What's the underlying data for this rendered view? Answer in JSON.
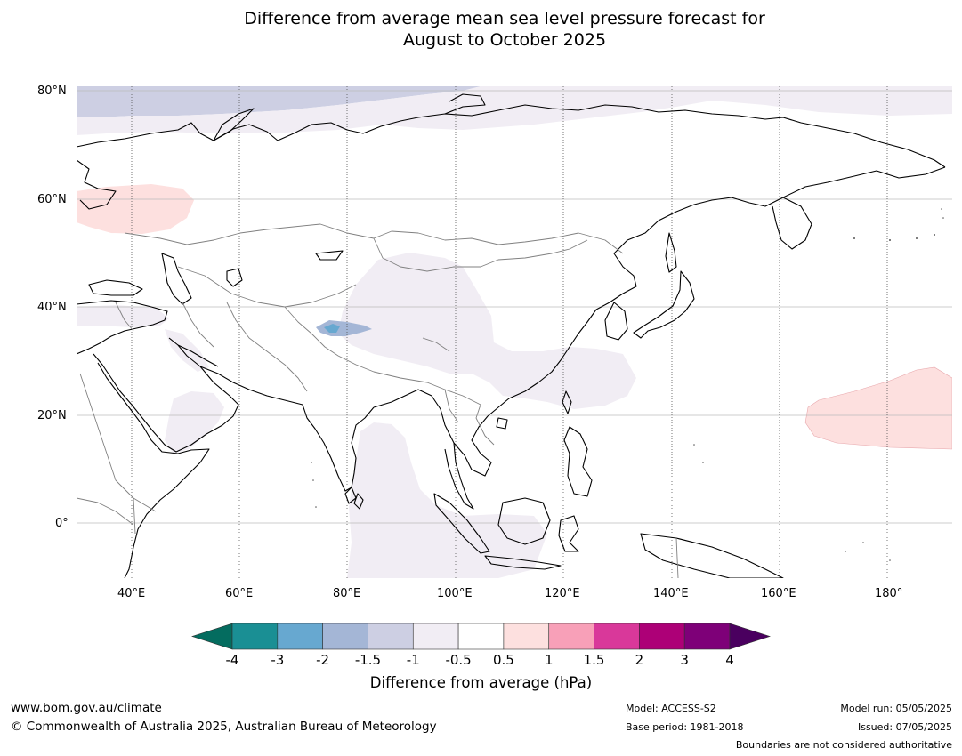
{
  "title": {
    "line1": "Difference from average mean sea level pressure forecast for",
    "line2": "August to October 2025"
  },
  "map": {
    "lat_labels": [
      "80°N",
      "60°N",
      "40°N",
      "20°N",
      "0°"
    ],
    "lon_labels": [
      "40°E",
      "60°E",
      "80°E",
      "100°E",
      "120°E",
      "140°E",
      "160°E",
      "180°"
    ]
  },
  "colorbar": {
    "label": "Difference from average (hPa)",
    "ticks": [
      "-4",
      "-3",
      "-2",
      "-1.5",
      "-1",
      "-0.5",
      "0.5",
      "1",
      "1.5",
      "2",
      "3",
      "4"
    ],
    "colors": [
      "#1a8f94",
      "#67a8d0",
      "#a4b6d6",
      "#cdcfe3",
      "#f1edf4",
      "#ffffff",
      "#fde0df",
      "#f8a0b8",
      "#d9389a",
      "#ad0077",
      "#7e0078"
    ],
    "under_color": "#046c5f",
    "over_color": "#4a005f"
  },
  "footer": {
    "url": "www.bom.gov.au/climate",
    "copyright": "© Commonwealth of Australia 2025, Australian Bureau of Meteorology",
    "model": "Model: ACCESS-S2",
    "base_period": "Base period: 1981-2018",
    "model_run": "Model run: 05/05/2025",
    "issued": "Issued: 07/05/2025",
    "disclaimer": "Boundaries are not considered authoritative"
  }
}
